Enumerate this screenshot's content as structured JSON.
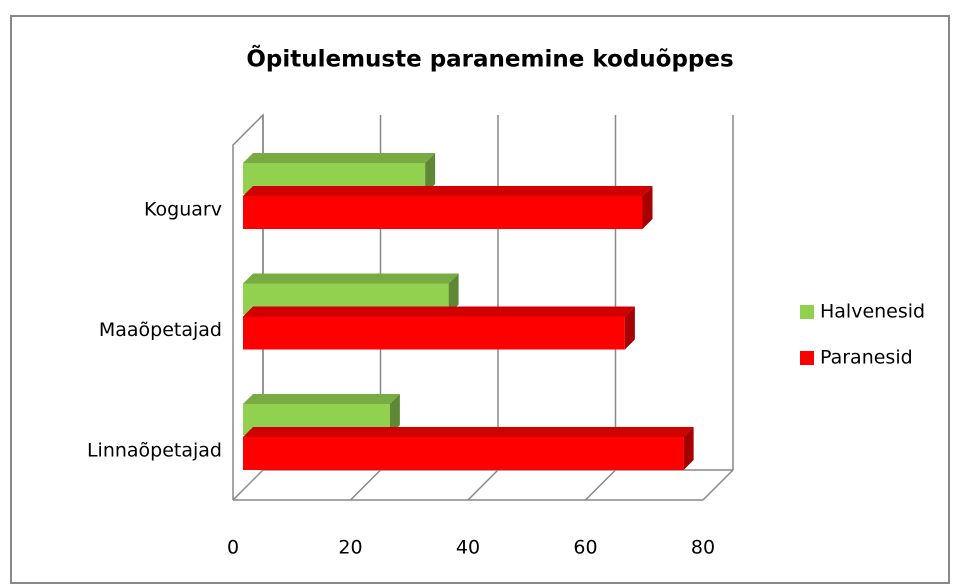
{
  "chart_data": {
    "type": "bar3d_horizontal",
    "title": "Õpitulemuste paranemine  koduõppes",
    "categories": [
      "Koguarv",
      "Maaõpetajad",
      "Linnaõpetajad"
    ],
    "series": [
      {
        "name": "Halvenesid",
        "color": "#92d050",
        "values": [
          31,
          35,
          25
        ]
      },
      {
        "name": "Paranesid",
        "color": "#ff0000",
        "values": [
          68,
          65,
          75
        ]
      }
    ],
    "xlim": [
      0,
      80
    ],
    "xticks": [
      0,
      20,
      40,
      60,
      80
    ],
    "grid": true,
    "legend": "right"
  }
}
